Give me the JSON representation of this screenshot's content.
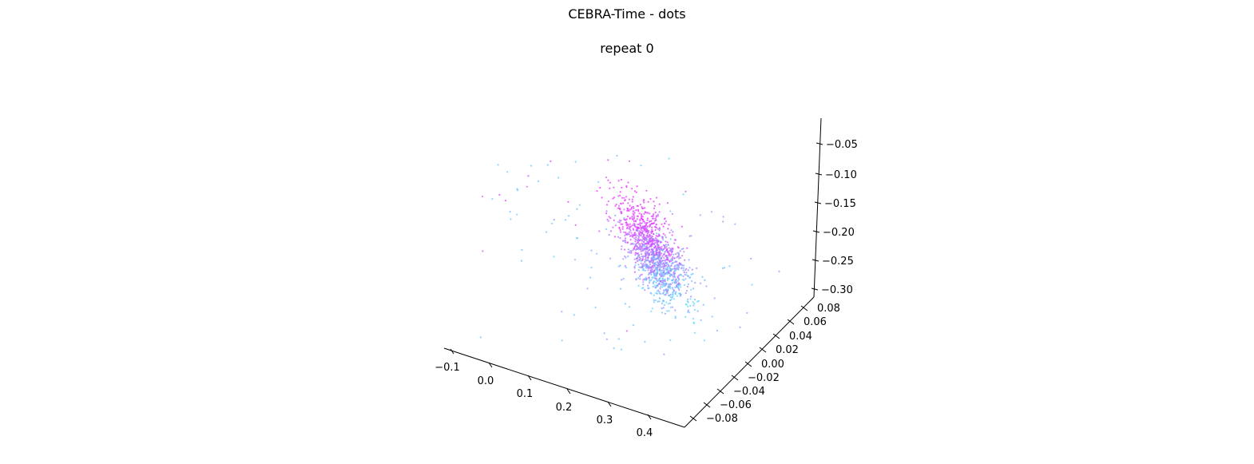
{
  "figure": {
    "title": "CEBRA-Time - dots",
    "subtitle": "repeat 0"
  },
  "chart_data": {
    "type": "scatter",
    "dimensions": 3,
    "title": "CEBRA-Time - dots",
    "subtitle": "repeat 0",
    "grid": false,
    "axes": {
      "x": {
        "ticks": [
          "−0.1",
          "0.0",
          "0.1",
          "0.2",
          "0.3",
          "0.4"
        ]
      },
      "y": {
        "ticks": [
          "−0.08",
          "−0.06",
          "−0.04",
          "−0.02",
          "0.00",
          "0.02",
          "0.04",
          "0.06",
          "0.08"
        ]
      },
      "z": {
        "ticks": [
          "−0.30",
          "−0.25",
          "−0.20",
          "−0.15",
          "−0.10",
          "−0.05"
        ]
      }
    },
    "colormap": {
      "name": "cool",
      "low": "#55ddff",
      "high": "#ee33ff"
    },
    "n_points": 1500,
    "point_cloud_shape": "dense ellipsoidal cluster oriented diagonally, magenta-rich core with cyan periphery and sparse cyan outliers toward upper-left"
  }
}
